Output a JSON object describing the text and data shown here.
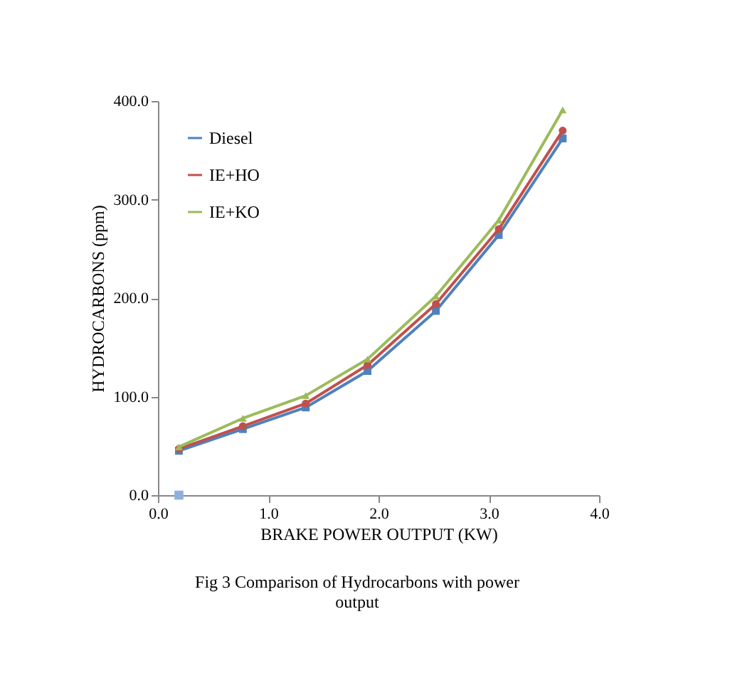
{
  "chart_data": {
    "type": "line",
    "xlabel": "BRAKE POWER OUTPUT (KW)",
    "ylabel": "HYDROCARBONS (ppm)",
    "x": [
      0.19,
      0.77,
      1.34,
      1.9,
      2.52,
      3.09,
      3.67
    ],
    "series": [
      {
        "name": "Diesel",
        "color": "#4f81bd",
        "marker": "square",
        "values": [
          45,
          67,
          89,
          126,
          187,
          264,
          362
        ]
      },
      {
        "name": "IE+HO",
        "color": "#c0504d",
        "marker": "circle",
        "values": [
          47,
          70,
          93,
          132,
          194,
          270,
          370
        ]
      },
      {
        "name": "IE+KO",
        "color": "#9bbb59",
        "marker": "triangle",
        "values": [
          49,
          78,
          101,
          138,
          202,
          279,
          391
        ]
      },
      {
        "type": "scatter",
        "color": "#8fb0dc",
        "marker": "square",
        "x": [
          0.19
        ],
        "values": [
          0
        ]
      }
    ],
    "xlim": [
      0,
      4
    ],
    "xticks": [
      {
        "value": 0,
        "label": "0.0"
      },
      {
        "value": 1,
        "label": "1.0"
      },
      {
        "value": 2,
        "label": "2.0"
      },
      {
        "value": 3,
        "label": "3.0"
      },
      {
        "value": 4,
        "label": "4.0"
      }
    ],
    "ylim": [
      0,
      400
    ],
    "yticks": [
      {
        "value": 0,
        "label": "0.0"
      },
      {
        "value": 100,
        "label": "100.0"
      },
      {
        "value": 200,
        "label": "200.0"
      },
      {
        "value": 300,
        "label": "300.0"
      },
      {
        "value": 400,
        "label": "400.0"
      }
    ],
    "grid": false,
    "legend": "top left",
    "annotations": [
      "Fig 3 Comparison of Hydrocarbons with power output"
    ]
  }
}
